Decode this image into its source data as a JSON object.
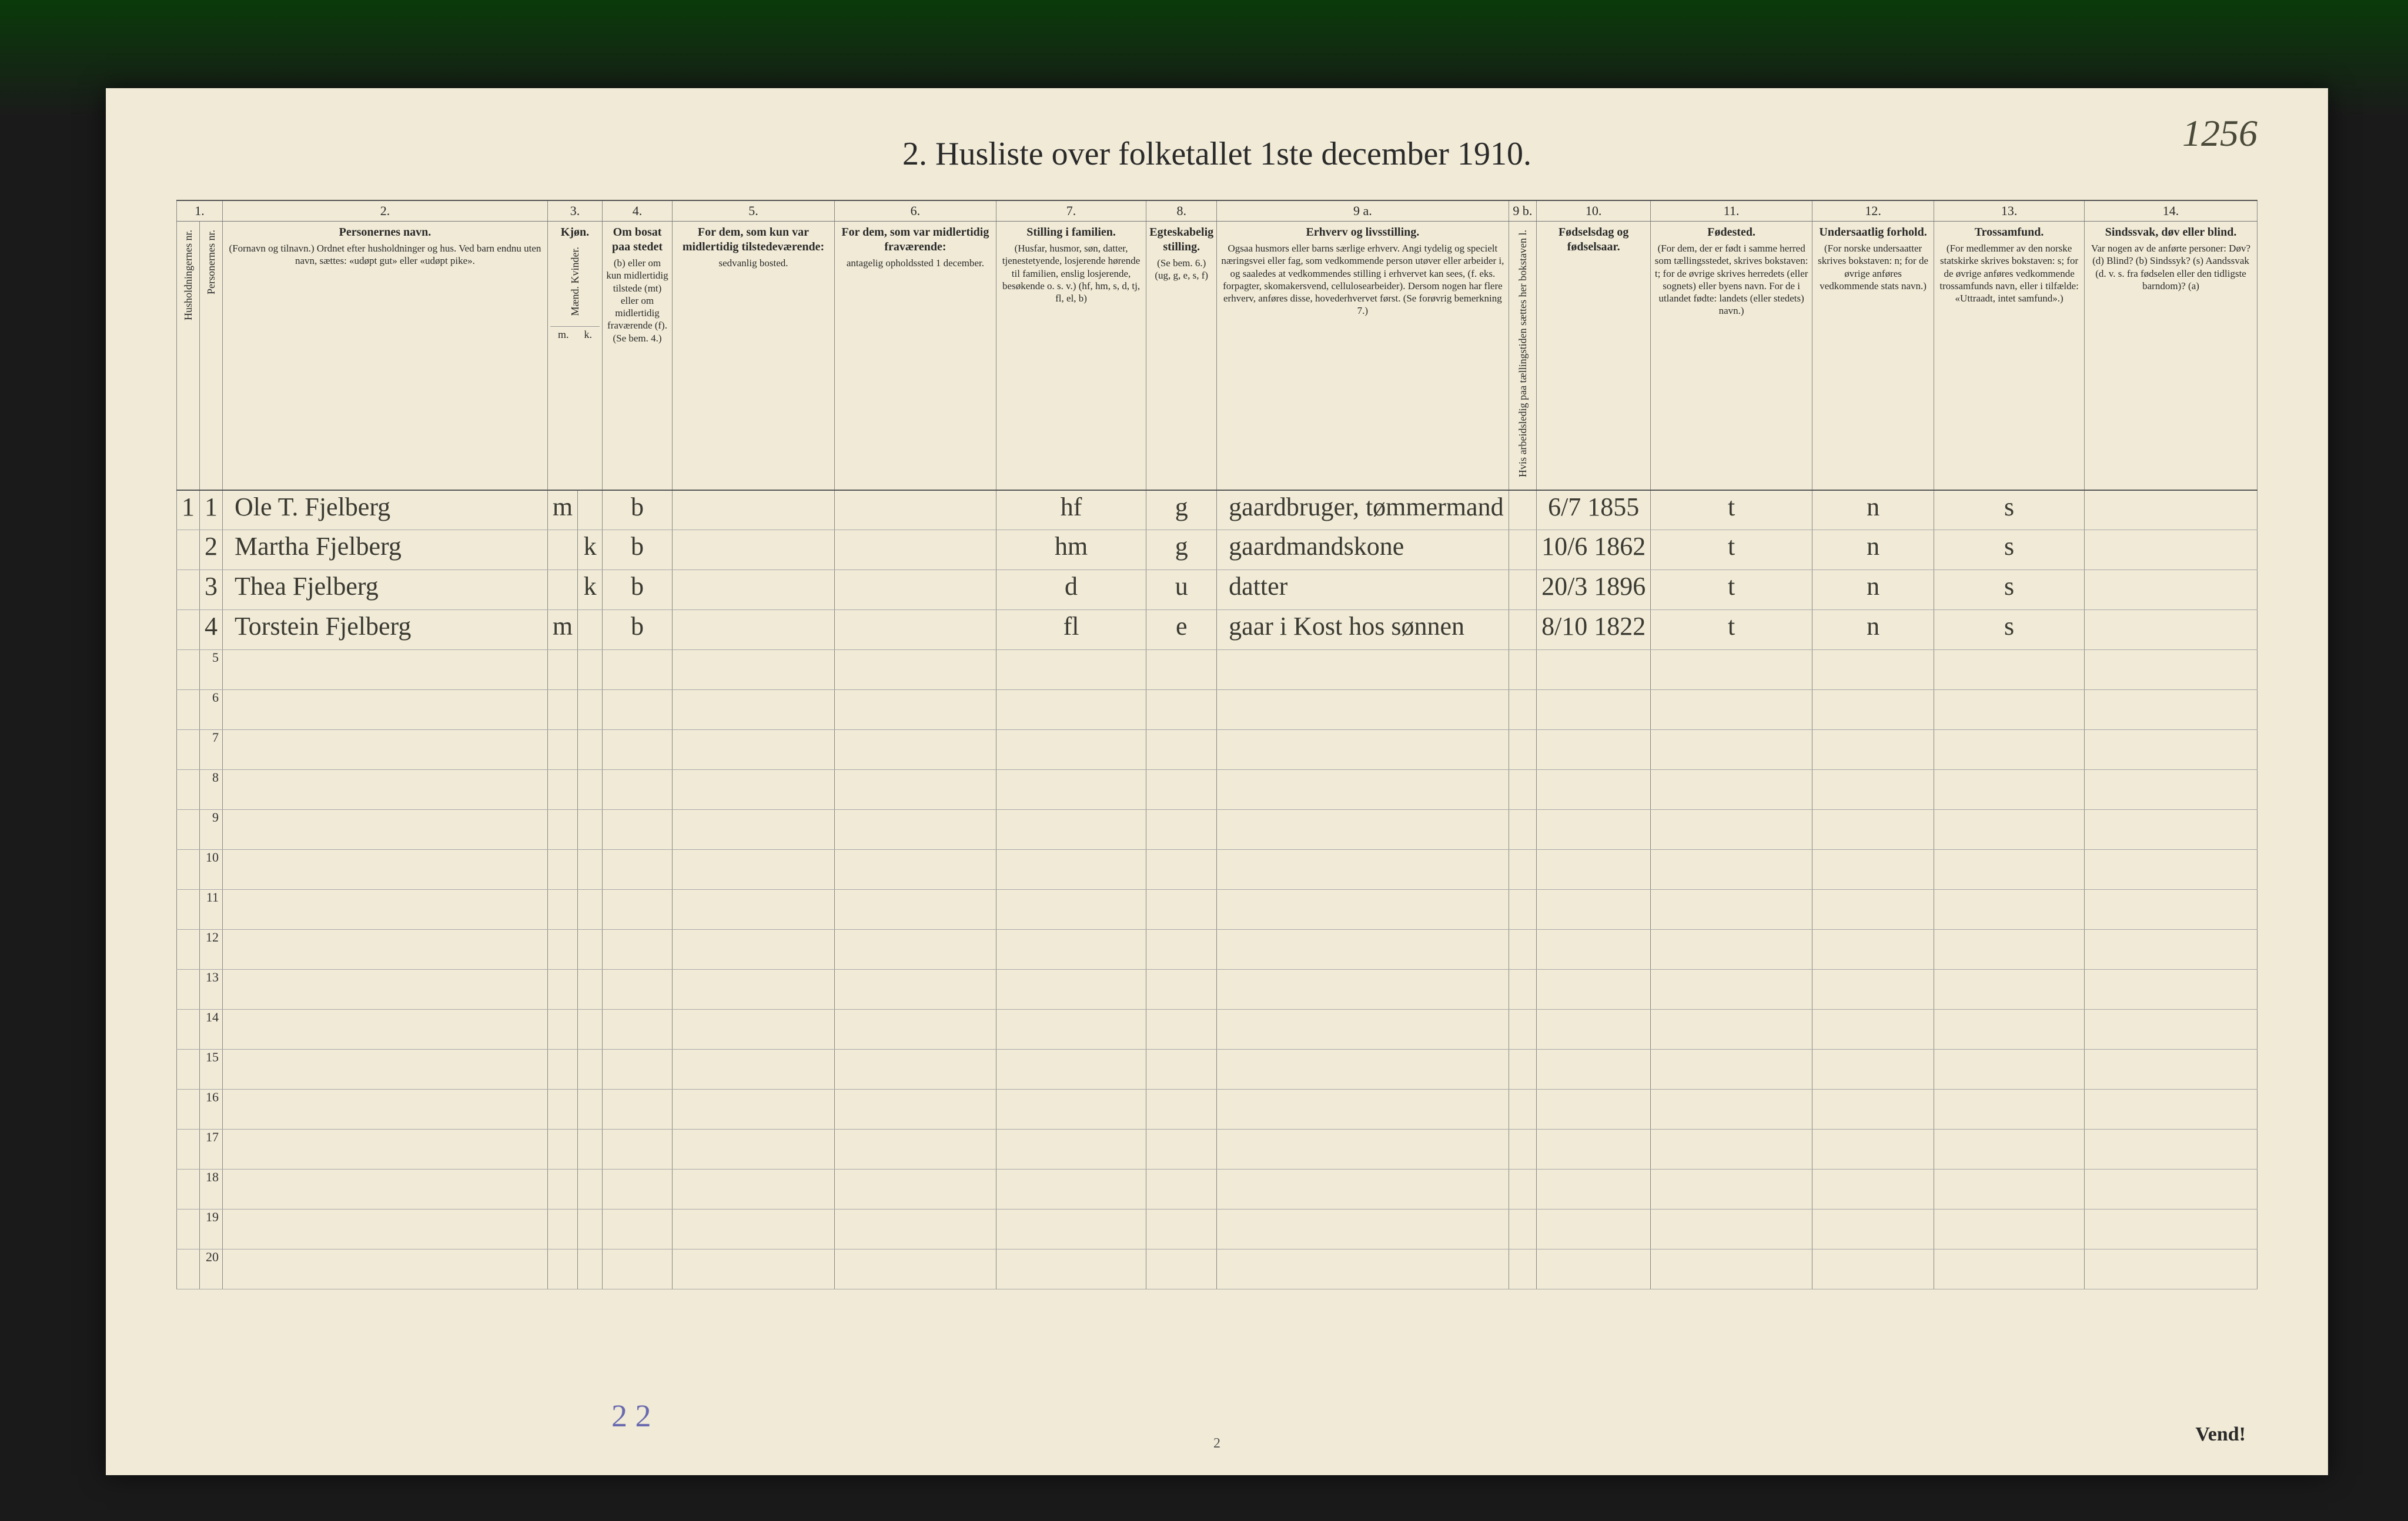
{
  "pageRef": "1256",
  "title": "2.  Husliste over folketallet 1ste december 1910.",
  "footerNote": "2 2",
  "footerPage": "2",
  "footerVend": "Vend!",
  "colNums": [
    "1.",
    "2.",
    "3.",
    "4.",
    "5.",
    "6.",
    "7.",
    "8.",
    "9 a.",
    "9 b.",
    "10.",
    "11.",
    "12.",
    "13.",
    "14."
  ],
  "headers": {
    "c1a": "Husholdningernes nr.",
    "c1b": "Personernes nr.",
    "c2_title": "Personernes navn.",
    "c2_sub": "(Fornavn og tilnavn.)\nOrdnet efter husholdninger og hus.\nVed barn endnu uten navn, sættes: «udøpt gut» eller «udøpt pike».",
    "c3_title": "Kjøn.",
    "c3_sub": "Mænd.  Kvinder.",
    "c3_mk_m": "m.",
    "c3_mk_k": "k.",
    "c4_title": "Om bosat paa stedet",
    "c4_sub": "(b) eller om kun midlertidig tilstede (mt) eller om midlertidig fraværende (f). (Se bem. 4.)",
    "c5_title": "For dem, som kun var midlertidig tilstedeværende:",
    "c5_sub": "sedvanlig bosted.",
    "c6_title": "For dem, som var midlertidig fraværende:",
    "c6_sub": "antagelig opholdssted 1 december.",
    "c7_title": "Stilling i familien.",
    "c7_sub": "(Husfar, husmor, søn, datter, tjenestetyende, losjerende hørende til familien, enslig losjerende, besøkende o. s. v.)\n(hf, hm, s, d, tj, fl, el, b)",
    "c8_title": "Egteskabelig stilling.",
    "c8_sub": "(Se bem. 6.) (ug, g, e, s, f)",
    "c9a_title": "Erhverv og livsstilling.",
    "c9a_sub": "Ogsaa husmors eller barns særlige erhverv. Angi tydelig og specielt næringsvei eller fag, som vedkommende person utøver eller arbeider i, og saaledes at vedkommendes stilling i erhvervet kan sees, (f. eks. forpagter, skomakersvend, cellulosearbeider). Dersom nogen har flere erhverv, anføres disse, hovederhvervet først. (Se forøvrig bemerkning 7.)",
    "c9b": "Hvis arbeidsledig paa tællingstiden sættes her bokstaven l.",
    "c10_title": "Fødselsdag og fødselsaar.",
    "c11_title": "Fødested.",
    "c11_sub": "(For dem, der er født i samme herred som tællingsstedet, skrives bokstaven: t; for de øvrige skrives herredets (eller sognets) eller byens navn. For de i utlandet fødte: landets (eller stedets) navn.)",
    "c12_title": "Undersaatlig forhold.",
    "c12_sub": "(For norske undersaatter skrives bokstaven: n; for de øvrige anføres vedkommende stats navn.)",
    "c13_title": "Trossamfund.",
    "c13_sub": "(For medlemmer av den norske statskirke skrives bokstaven: s; for de øvrige anføres vedkommende trossamfunds navn, eller i tilfælde: «Uttraadt, intet samfund».)",
    "c14_title": "Sindssvak, døv eller blind.",
    "c14_sub": "Var nogen av de anførte personer:\nDøv? (d)\nBlind? (b)\nSindssyk? (s)\nAandssvak (d. v. s. fra fødselen eller den tidligste barndom)? (a)"
  },
  "rows": [
    {
      "hh": "1",
      "pn": "1",
      "name": "Ole T.  Fjelberg",
      "sexM": "m",
      "sexK": "",
      "res": "b",
      "c5": "",
      "c6": "",
      "fam": "hf",
      "mar": "g",
      "occ": "gaardbruger, tømmermand",
      "dob": "6/7 1855",
      "birthplace": "t",
      "nat": "n",
      "faith": "s",
      "dis": ""
    },
    {
      "hh": "",
      "pn": "2",
      "name": "Martha   Fjelberg",
      "sexM": "",
      "sexK": "k",
      "res": "b",
      "c5": "",
      "c6": "",
      "fam": "hm",
      "mar": "g",
      "occ": "gaardmandskone",
      "dob": "10/6 1862",
      "birthplace": "t",
      "nat": "n",
      "faith": "s",
      "dis": ""
    },
    {
      "hh": "",
      "pn": "3",
      "name": "Thea    Fjelberg",
      "sexM": "",
      "sexK": "k",
      "res": "b",
      "c5": "",
      "c6": "",
      "fam": "d",
      "mar": "u",
      "occ": "datter",
      "dob": "20/3 1896",
      "birthplace": "t",
      "nat": "n",
      "faith": "s",
      "dis": ""
    },
    {
      "hh": "",
      "pn": "4",
      "name": "Torstein  Fjelberg",
      "sexM": "m",
      "sexK": "",
      "res": "b",
      "c5": "",
      "c6": "",
      "fam": "fl",
      "mar": "e",
      "occ": "gaar i Kost hos sønnen",
      "dob": "8/10 1822",
      "birthplace": "t",
      "nat": "n",
      "faith": "s",
      "dis": ""
    }
  ],
  "emptyRows": [
    5,
    6,
    7,
    8,
    9,
    10,
    11,
    12,
    13,
    14,
    15,
    16,
    17,
    18,
    19,
    20
  ],
  "colWidths": {
    "c1a": 38,
    "c1b": 38,
    "c2": 560,
    "c3m": 42,
    "c3k": 42,
    "c4": 120,
    "c5": 280,
    "c6": 280,
    "c7": 260,
    "c8": 120,
    "c9a": 470,
    "c9b": 48,
    "c10": 170,
    "c11": 280,
    "c12": 210,
    "c13": 260,
    "c14": 300
  }
}
